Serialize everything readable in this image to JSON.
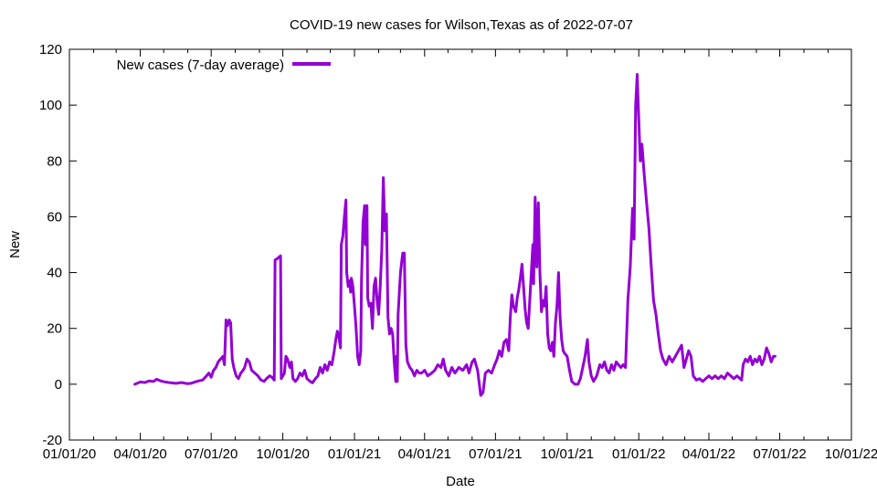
{
  "chart_data": {
    "type": "line",
    "title": "COVID-19 new cases for Wilson,Texas as of 2022-07-07",
    "xlabel": "Date",
    "ylabel": "New",
    "xlim": [
      "2020-01-01",
      "2022-10-01"
    ],
    "ylim": [
      -20,
      120
    ],
    "grid": false,
    "legend_position": "top-left",
    "x_ticks": [
      "01/01/20",
      "04/01/20",
      "07/01/20",
      "10/01/20",
      "01/01/21",
      "04/01/21",
      "07/01/21",
      "10/01/21",
      "01/01/22",
      "04/01/22",
      "07/01/22",
      "10/01/22"
    ],
    "y_ticks": [
      -20,
      0,
      20,
      40,
      60,
      80,
      100,
      120
    ],
    "series": [
      {
        "name": "New cases (7-day average)",
        "color": "#9400d3",
        "points": [
          [
            "2020-03-25",
            0
          ],
          [
            "2020-04-01",
            0.8
          ],
          [
            "2020-04-07",
            0.6
          ],
          [
            "2020-04-12",
            1.2
          ],
          [
            "2020-04-18",
            1
          ],
          [
            "2020-04-22",
            1.8
          ],
          [
            "2020-04-27",
            1.2
          ],
          [
            "2020-05-03",
            0.8
          ],
          [
            "2020-05-10",
            0.5
          ],
          [
            "2020-05-17",
            0.3
          ],
          [
            "2020-05-24",
            0.6
          ],
          [
            "2020-05-31",
            0.2
          ],
          [
            "2020-06-05",
            0.3
          ],
          [
            "2020-06-10",
            0.8
          ],
          [
            "2020-06-15",
            1.2
          ],
          [
            "2020-06-20",
            1.5
          ],
          [
            "2020-06-25",
            3
          ],
          [
            "2020-06-28",
            4
          ],
          [
            "2020-07-01",
            2.5
          ],
          [
            "2020-07-04",
            5
          ],
          [
            "2020-07-07",
            6
          ],
          [
            "2020-07-10",
            8
          ],
          [
            "2020-07-13",
            9
          ],
          [
            "2020-07-16",
            10
          ],
          [
            "2020-07-18",
            7
          ],
          [
            "2020-07-20",
            23
          ],
          [
            "2020-07-22",
            21
          ],
          [
            "2020-07-24",
            23
          ],
          [
            "2020-07-26",
            22
          ],
          [
            "2020-07-28",
            9
          ],
          [
            "2020-07-30",
            6
          ],
          [
            "2020-08-02",
            3
          ],
          [
            "2020-08-05",
            2
          ],
          [
            "2020-08-08",
            4
          ],
          [
            "2020-08-11",
            5
          ],
          [
            "2020-08-13",
            6
          ],
          [
            "2020-08-16",
            9
          ],
          [
            "2020-08-19",
            8
          ],
          [
            "2020-08-22",
            5
          ],
          [
            "2020-08-26",
            4
          ],
          [
            "2020-08-30",
            3
          ],
          [
            "2020-09-03",
            1.5
          ],
          [
            "2020-09-07",
            1
          ],
          [
            "2020-09-10",
            2
          ],
          [
            "2020-09-14",
            3
          ],
          [
            "2020-09-17",
            2.5
          ],
          [
            "2020-09-20",
            1.5
          ],
          [
            "2020-09-21",
            44.5
          ],
          [
            "2020-09-24",
            45
          ],
          [
            "2020-09-26",
            45.5
          ],
          [
            "2020-09-28",
            46
          ],
          [
            "2020-09-29",
            2
          ],
          [
            "2020-10-01",
            3
          ],
          [
            "2020-10-03",
            4
          ],
          [
            "2020-10-05",
            10
          ],
          [
            "2020-10-07",
            9
          ],
          [
            "2020-10-10",
            6
          ],
          [
            "2020-10-12",
            8
          ],
          [
            "2020-10-14",
            2
          ],
          [
            "2020-10-17",
            1
          ],
          [
            "2020-10-20",
            2
          ],
          [
            "2020-10-23",
            4
          ],
          [
            "2020-10-26",
            3
          ],
          [
            "2020-10-29",
            5
          ],
          [
            "2020-11-01",
            2
          ],
          [
            "2020-11-05",
            1
          ],
          [
            "2020-11-08",
            0.5
          ],
          [
            "2020-11-12",
            2
          ],
          [
            "2020-11-15",
            3
          ],
          [
            "2020-11-18",
            6
          ],
          [
            "2020-11-21",
            4
          ],
          [
            "2020-11-24",
            7
          ],
          [
            "2020-11-27",
            5
          ],
          [
            "2020-11-30",
            8
          ],
          [
            "2020-12-03",
            7
          ],
          [
            "2020-12-06",
            12
          ],
          [
            "2020-12-08",
            16
          ],
          [
            "2020-12-10",
            19
          ],
          [
            "2020-12-12",
            17
          ],
          [
            "2020-12-14",
            13
          ],
          [
            "2020-12-15",
            50
          ],
          [
            "2020-12-17",
            53
          ],
          [
            "2020-12-19",
            60
          ],
          [
            "2020-12-21",
            66
          ],
          [
            "2020-12-22",
            40
          ],
          [
            "2020-12-24",
            35
          ],
          [
            "2020-12-26",
            37
          ],
          [
            "2020-12-27",
            33
          ],
          [
            "2020-12-28",
            38
          ],
          [
            "2020-12-30",
            35
          ],
          [
            "2021-01-01",
            28
          ],
          [
            "2021-01-03",
            20
          ],
          [
            "2021-01-05",
            10
          ],
          [
            "2021-01-07",
            7
          ],
          [
            "2021-01-09",
            12
          ],
          [
            "2021-01-10",
            37
          ],
          [
            "2021-01-12",
            58
          ],
          [
            "2021-01-14",
            64
          ],
          [
            "2021-01-15",
            50
          ],
          [
            "2021-01-17",
            64
          ],
          [
            "2021-01-18",
            31
          ],
          [
            "2021-01-20",
            28
          ],
          [
            "2021-01-22",
            29
          ],
          [
            "2021-01-24",
            20
          ],
          [
            "2021-01-26",
            35
          ],
          [
            "2021-01-28",
            38
          ],
          [
            "2021-01-30",
            30
          ],
          [
            "2021-02-01",
            25
          ],
          [
            "2021-02-03",
            35
          ],
          [
            "2021-02-05",
            48
          ],
          [
            "2021-02-07",
            74
          ],
          [
            "2021-02-09",
            55
          ],
          [
            "2021-02-11",
            61
          ],
          [
            "2021-02-13",
            24
          ],
          [
            "2021-02-15",
            18
          ],
          [
            "2021-02-17",
            20
          ],
          [
            "2021-02-19",
            18
          ],
          [
            "2021-02-21",
            8
          ],
          [
            "2021-02-23",
            1
          ],
          [
            "2021-02-24",
            10
          ],
          [
            "2021-02-25",
            1
          ],
          [
            "2021-02-26",
            25
          ],
          [
            "2021-02-28",
            35
          ],
          [
            "2021-03-01",
            40
          ],
          [
            "2021-03-03",
            45
          ],
          [
            "2021-03-04",
            47
          ],
          [
            "2021-03-06",
            47
          ],
          [
            "2021-03-08",
            14
          ],
          [
            "2021-03-10",
            8
          ],
          [
            "2021-03-13",
            6
          ],
          [
            "2021-03-16",
            5
          ],
          [
            "2021-03-19",
            3
          ],
          [
            "2021-03-22",
            5
          ],
          [
            "2021-03-25",
            4
          ],
          [
            "2021-03-28",
            4
          ],
          [
            "2021-04-01",
            5
          ],
          [
            "2021-04-05",
            3
          ],
          [
            "2021-04-10",
            4
          ],
          [
            "2021-04-14",
            5
          ],
          [
            "2021-04-18",
            7
          ],
          [
            "2021-04-22",
            6
          ],
          [
            "2021-04-25",
            9
          ],
          [
            "2021-04-28",
            5
          ],
          [
            "2021-05-02",
            3
          ],
          [
            "2021-05-06",
            6
          ],
          [
            "2021-05-10",
            4
          ],
          [
            "2021-05-15",
            6
          ],
          [
            "2021-05-20",
            5
          ],
          [
            "2021-05-25",
            7
          ],
          [
            "2021-05-28",
            4
          ],
          [
            "2021-06-01",
            8
          ],
          [
            "2021-06-04",
            9
          ],
          [
            "2021-06-08",
            5
          ],
          [
            "2021-06-12",
            -4
          ],
          [
            "2021-06-15",
            -3
          ],
          [
            "2021-06-18",
            4
          ],
          [
            "2021-06-22",
            5
          ],
          [
            "2021-06-26",
            4
          ],
          [
            "2021-06-30",
            7
          ],
          [
            "2021-07-03",
            9
          ],
          [
            "2021-07-06",
            12
          ],
          [
            "2021-07-09",
            10
          ],
          [
            "2021-07-12",
            15
          ],
          [
            "2021-07-15",
            16
          ],
          [
            "2021-07-18",
            12
          ],
          [
            "2021-07-20",
            24
          ],
          [
            "2021-07-22",
            32
          ],
          [
            "2021-07-24",
            28
          ],
          [
            "2021-07-27",
            26
          ],
          [
            "2021-07-29",
            31
          ],
          [
            "2021-07-31",
            34
          ],
          [
            "2021-08-02",
            38
          ],
          [
            "2021-08-04",
            43
          ],
          [
            "2021-08-06",
            35
          ],
          [
            "2021-08-08",
            27
          ],
          [
            "2021-08-10",
            22
          ],
          [
            "2021-08-12",
            20
          ],
          [
            "2021-08-14",
            30
          ],
          [
            "2021-08-16",
            40
          ],
          [
            "2021-08-18",
            50
          ],
          [
            "2021-08-19",
            36
          ],
          [
            "2021-08-21",
            67
          ],
          [
            "2021-08-23",
            42
          ],
          [
            "2021-08-25",
            65
          ],
          [
            "2021-08-27",
            40
          ],
          [
            "2021-08-29",
            26
          ],
          [
            "2021-08-31",
            30
          ],
          [
            "2021-09-02",
            28
          ],
          [
            "2021-09-04",
            35
          ],
          [
            "2021-09-06",
            18
          ],
          [
            "2021-09-08",
            13
          ],
          [
            "2021-09-10",
            12
          ],
          [
            "2021-09-12",
            15
          ],
          [
            "2021-09-14",
            10
          ],
          [
            "2021-09-16",
            22
          ],
          [
            "2021-09-18",
            28
          ],
          [
            "2021-09-20",
            40
          ],
          [
            "2021-09-22",
            24
          ],
          [
            "2021-09-24",
            16
          ],
          [
            "2021-09-26",
            12
          ],
          [
            "2021-09-28",
            11
          ],
          [
            "2021-10-01",
            10
          ],
          [
            "2021-10-04",
            5
          ],
          [
            "2021-10-07",
            1
          ],
          [
            "2021-10-11",
            0
          ],
          [
            "2021-10-15",
            0
          ],
          [
            "2021-10-18",
            2
          ],
          [
            "2021-10-21",
            6
          ],
          [
            "2021-10-24",
            10
          ],
          [
            "2021-10-27",
            16
          ],
          [
            "2021-10-29",
            8
          ],
          [
            "2021-11-01",
            3
          ],
          [
            "2021-11-04",
            1
          ],
          [
            "2021-11-08",
            3
          ],
          [
            "2021-11-12",
            7
          ],
          [
            "2021-11-15",
            6
          ],
          [
            "2021-11-18",
            8
          ],
          [
            "2021-11-21",
            5
          ],
          [
            "2021-11-24",
            4
          ],
          [
            "2021-11-27",
            7
          ],
          [
            "2021-11-30",
            5
          ],
          [
            "2021-12-03",
            8
          ],
          [
            "2021-12-06",
            7
          ],
          [
            "2021-12-09",
            6
          ],
          [
            "2021-12-12",
            7
          ],
          [
            "2021-12-15",
            6
          ],
          [
            "2021-12-18",
            30
          ],
          [
            "2021-12-21",
            42
          ],
          [
            "2021-12-24",
            63
          ],
          [
            "2021-12-26",
            52
          ],
          [
            "2021-12-28",
            100
          ],
          [
            "2021-12-30",
            111
          ],
          [
            "2022-01-01",
            95
          ],
          [
            "2022-01-03",
            80
          ],
          [
            "2022-01-05",
            86
          ],
          [
            "2022-01-08",
            75
          ],
          [
            "2022-01-11",
            65
          ],
          [
            "2022-01-14",
            56
          ],
          [
            "2022-01-17",
            42
          ],
          [
            "2022-01-20",
            30
          ],
          [
            "2022-01-23",
            25
          ],
          [
            "2022-01-26",
            18
          ],
          [
            "2022-01-29",
            12
          ],
          [
            "2022-02-01",
            9
          ],
          [
            "2022-02-05",
            7
          ],
          [
            "2022-02-09",
            10
          ],
          [
            "2022-02-13",
            8
          ],
          [
            "2022-02-17",
            10
          ],
          [
            "2022-02-21",
            12
          ],
          [
            "2022-02-25",
            14
          ],
          [
            "2022-02-28",
            6
          ],
          [
            "2022-03-03",
            9
          ],
          [
            "2022-03-06",
            12
          ],
          [
            "2022-03-09",
            10
          ],
          [
            "2022-03-12",
            3
          ],
          [
            "2022-03-16",
            1.5
          ],
          [
            "2022-03-20",
            2
          ],
          [
            "2022-03-24",
            1
          ],
          [
            "2022-03-28",
            2
          ],
          [
            "2022-04-01",
            3
          ],
          [
            "2022-04-05",
            2
          ],
          [
            "2022-04-09",
            3
          ],
          [
            "2022-04-13",
            2
          ],
          [
            "2022-04-17",
            3
          ],
          [
            "2022-04-21",
            2
          ],
          [
            "2022-04-25",
            4
          ],
          [
            "2022-04-29",
            3
          ],
          [
            "2022-05-03",
            2
          ],
          [
            "2022-05-07",
            3
          ],
          [
            "2022-05-11",
            2
          ],
          [
            "2022-05-13",
            1.5
          ],
          [
            "2022-05-15",
            7
          ],
          [
            "2022-05-18",
            9
          ],
          [
            "2022-05-21",
            8
          ],
          [
            "2022-05-24",
            10
          ],
          [
            "2022-05-27",
            7
          ],
          [
            "2022-05-30",
            9
          ],
          [
            "2022-06-02",
            8
          ],
          [
            "2022-06-05",
            10
          ],
          [
            "2022-06-08",
            7
          ],
          [
            "2022-06-11",
            9
          ],
          [
            "2022-06-14",
            13
          ],
          [
            "2022-06-17",
            11
          ],
          [
            "2022-06-20",
            8
          ],
          [
            "2022-06-23",
            10
          ],
          [
            "2022-06-25",
            10
          ]
        ]
      }
    ]
  }
}
